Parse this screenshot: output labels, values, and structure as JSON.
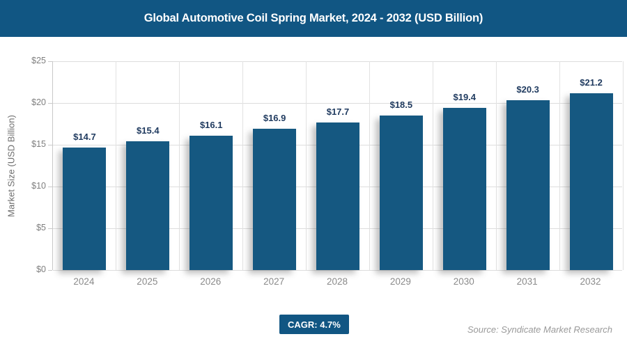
{
  "header": {
    "title": "Global Automotive Coil Spring Market, 2024 - 2032 (USD Billion)"
  },
  "chart_data": {
    "type": "bar",
    "title": "Global Automotive Coil Spring Market, 2024 - 2032 (USD Billion)",
    "categories": [
      "2024",
      "2025",
      "2026",
      "2027",
      "2028",
      "2029",
      "2030",
      "2031",
      "2032"
    ],
    "values": [
      14.7,
      15.4,
      16.1,
      16.9,
      17.7,
      18.5,
      19.4,
      20.3,
      21.2
    ],
    "value_labels": [
      "$14.7",
      "$15.4",
      "$16.1",
      "$16.9",
      "$17.7",
      "$18.5",
      "$19.4",
      "$20.3",
      "$21.2"
    ],
    "xlabel": "",
    "ylabel": "Market Size (USD Billion)",
    "ylim": [
      0,
      25
    ],
    "yticks": [
      0,
      5,
      10,
      15,
      20,
      25
    ],
    "ytick_labels": [
      "$0",
      "$5",
      "$10",
      "$15",
      "$20",
      "$25"
    ],
    "grid": true,
    "legend": "none",
    "bar_color": "#155881",
    "label_color": "#1f3a5f",
    "accent_color": "#115683"
  },
  "footer": {
    "cagr": "CAGR: 4.7%",
    "source": "Source: Syndicate Market Research"
  }
}
